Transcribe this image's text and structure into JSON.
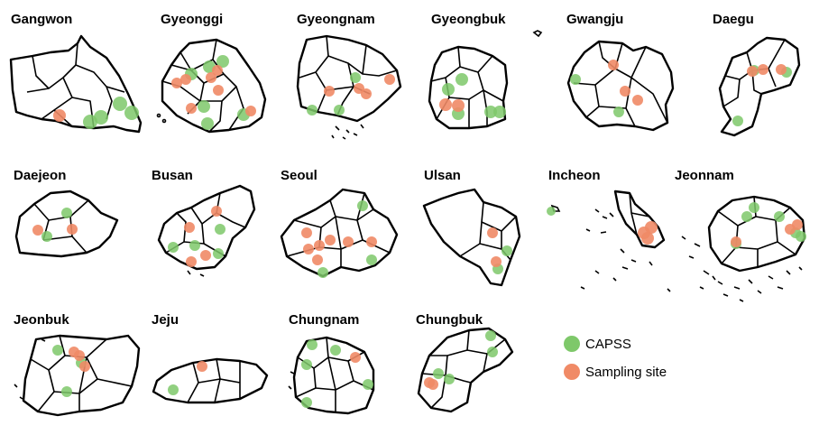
{
  "colors": {
    "capss": "#7ec86a",
    "sampling": "#f08a66",
    "outline": "#000000"
  },
  "legend": [
    {
      "label": "CAPSS",
      "color": "#7ec86a"
    },
    {
      "label": "Sampling site",
      "color": "#f08a66"
    }
  ],
  "panels": [
    {
      "title": "Gangwon"
    },
    {
      "title": "Gyeonggi"
    },
    {
      "title": "Gyeongnam"
    },
    {
      "title": "Gyeongbuk"
    },
    {
      "title": "Gwangju"
    },
    {
      "title": "Daegu"
    },
    {
      "title": "Daejeon"
    },
    {
      "title": "Busan"
    },
    {
      "title": "Seoul"
    },
    {
      "title": "Ulsan"
    },
    {
      "title": "Incheon"
    },
    {
      "title": "Jeonnam"
    },
    {
      "title": "Jeonbuk"
    },
    {
      "title": "Jeju"
    },
    {
      "title": "Chungnam"
    },
    {
      "title": "Chungbuk"
    }
  ]
}
